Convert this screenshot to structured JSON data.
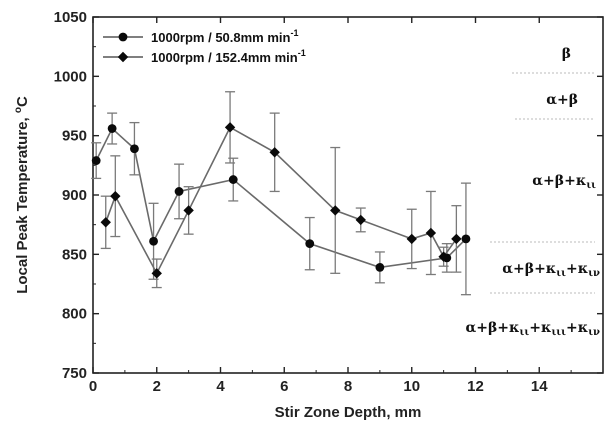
{
  "chart_data": {
    "type": "line",
    "xlabel": "Stir Zone Depth, mm",
    "ylabel": "Local Peak Temperature, ",
    "ylabel_unit_sup": "o",
    "ylabel_unit": "C",
    "xlim": [
      0,
      16
    ],
    "ylim": [
      750,
      1050
    ],
    "x_ticks": [
      0,
      2,
      4,
      6,
      8,
      10,
      12,
      14
    ],
    "y_ticks": [
      750,
      800,
      850,
      900,
      950,
      1000,
      1050
    ],
    "grid": false,
    "legend_position": "top-left",
    "series": [
      {
        "name": "1000rpm / 50.8mm min",
        "name_sup": "-1",
        "marker": "circle",
        "x": [
          0.1,
          0.6,
          1.3,
          1.9,
          2.7,
          4.4,
          6.8,
          9.0,
          11.1,
          11.7
        ],
        "y": [
          929,
          956,
          939,
          861,
          903,
          913,
          859,
          839,
          847,
          863
        ],
        "err": [
          15,
          13,
          22,
          32,
          23,
          18,
          22,
          13,
          12,
          47
        ]
      },
      {
        "name": "1000rpm / 152.4mm min",
        "name_sup": "-1",
        "marker": "diamond",
        "x": [
          0.4,
          0.7,
          2.0,
          3.0,
          4.3,
          5.7,
          7.6,
          8.4,
          10.0,
          10.6,
          11.0,
          11.4
        ],
        "y": [
          877,
          899,
          834,
          887,
          957,
          936,
          887,
          879,
          863,
          868,
          848,
          863
        ],
        "err": [
          22,
          34,
          12,
          20,
          30,
          33,
          53,
          10,
          25,
          35,
          8,
          28
        ]
      }
    ],
    "annotations": {
      "phases": [
        "β",
        "α+β",
        "α+β+κ",
        "α+β+κ+κ",
        "α+β+κ+κ+κ+κ"
      ],
      "phase_subscripts": [
        "ιι",
        "ιι",
        "ιν",
        "ιι",
        "ιιι",
        "ιν"
      ]
    }
  }
}
